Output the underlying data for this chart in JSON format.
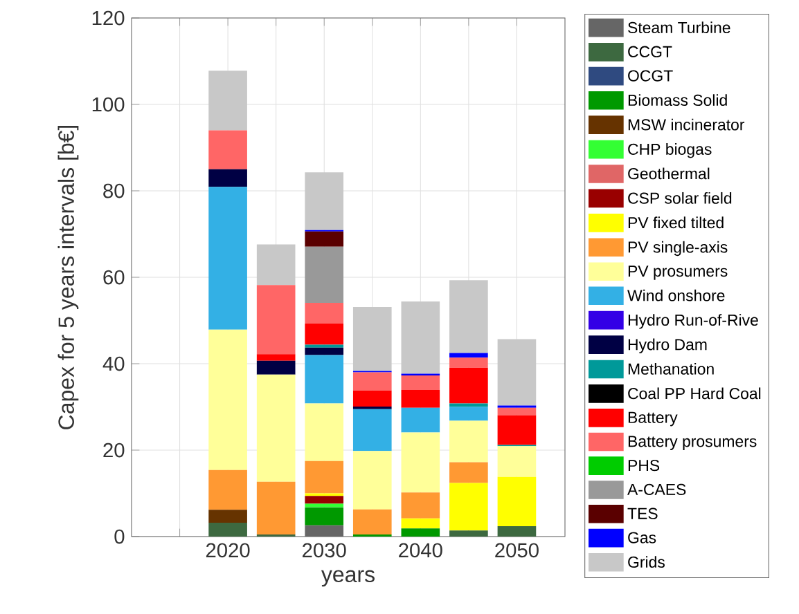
{
  "chart_data": {
    "type": "bar",
    "stacked": true,
    "xlabel": "years",
    "ylabel": "Capex for 5 years intervals [b€]",
    "x": [
      2020,
      2025,
      2030,
      2035,
      2040,
      2045,
      2050
    ],
    "xlim": [
      2010,
      2055
    ],
    "xticks": [
      {
        "value": 2015,
        "label": null
      },
      2020,
      {
        "value": 2025,
        "label": null
      },
      2030,
      {
        "value": 2035,
        "label": null
      },
      2040,
      {
        "value": 2045,
        "label": null
      },
      2050
    ],
    "ylim": [
      0,
      120
    ],
    "yticks": [
      0,
      20,
      40,
      60,
      80,
      100,
      120
    ],
    "grid": true,
    "legend": "right",
    "series": [
      {
        "name": "Steam Turbine",
        "color": "#666666",
        "values": [
          null,
          null,
          2.6,
          null,
          null,
          null,
          null
        ]
      },
      {
        "name": "CCGT",
        "color": "#3d6940",
        "values": [
          3.2,
          0.5,
          null,
          null,
          null,
          1.4,
          2.4
        ]
      },
      {
        "name": "OCGT",
        "color": "#2f4a80",
        "values": [
          null,
          null,
          null,
          null,
          null,
          null,
          null
        ]
      },
      {
        "name": "Biomass Solid",
        "color": "#009900",
        "values": [
          null,
          null,
          4.2,
          0.5,
          1.9,
          null,
          null
        ]
      },
      {
        "name": "MSW incinerator",
        "color": "#663300",
        "values": [
          3.0,
          null,
          null,
          null,
          null,
          null,
          null
        ]
      },
      {
        "name": "CHP biogas",
        "color": "#33ff33",
        "values": [
          null,
          null,
          0.8,
          null,
          null,
          null,
          null
        ]
      },
      {
        "name": "Geothermal",
        "color": "#e06666",
        "values": [
          null,
          null,
          null,
          null,
          null,
          null,
          null
        ]
      },
      {
        "name": "CSP solar field",
        "color": "#990000",
        "values": [
          null,
          null,
          1.8,
          null,
          null,
          null,
          null
        ]
      },
      {
        "name": "PV fixed tilted",
        "color": "#ffff00",
        "values": [
          null,
          null,
          0.6,
          null,
          2.3,
          11.0,
          11.4
        ]
      },
      {
        "name": "PV single-axis",
        "color": "#ff9933",
        "values": [
          9.2,
          12.2,
          7.5,
          5.8,
          6.0,
          4.8,
          null
        ]
      },
      {
        "name": "PV prosumers",
        "color": "#ffff99",
        "values": [
          32.5,
          24.8,
          13.3,
          13.5,
          13.9,
          9.6,
          7.1
        ]
      },
      {
        "name": "Wind onshore",
        "color": "#33b0e5",
        "values": [
          33.0,
          null,
          11.2,
          9.7,
          5.7,
          3.2,
          null
        ]
      },
      {
        "name": "Hydro Run-of-Rive",
        "color": "#3300e6",
        "values": [
          null,
          null,
          null,
          null,
          null,
          null,
          null
        ]
      },
      {
        "name": "Hydro Dam",
        "color": "#000044",
        "values": [
          4.1,
          3.2,
          1.7,
          0.6,
          null,
          null,
          null
        ]
      },
      {
        "name": "Methanation",
        "color": "#009999",
        "values": [
          null,
          null,
          0.7,
          null,
          null,
          0.8,
          0.3
        ]
      },
      {
        "name": "Coal PP Hard Coal",
        "color": "#000000",
        "values": [
          null,
          null,
          null,
          null,
          null,
          null,
          null
        ]
      },
      {
        "name": "Battery",
        "color": "#ff0000",
        "values": [
          null,
          1.5,
          4.9,
          3.7,
          4.1,
          8.3,
          6.9
        ]
      },
      {
        "name": "Battery prosumers",
        "color": "#ff6666",
        "values": [
          9.0,
          16.0,
          4.8,
          4.2,
          3.4,
          2.3,
          1.7
        ]
      },
      {
        "name": "PHS",
        "color": "#00cc00",
        "values": [
          null,
          null,
          null,
          null,
          null,
          null,
          null
        ]
      },
      {
        "name": "A-CAES",
        "color": "#999999",
        "values": [
          null,
          null,
          13.0,
          null,
          null,
          null,
          null
        ]
      },
      {
        "name": "TES",
        "color": "#5a0000",
        "values": [
          null,
          null,
          3.5,
          null,
          null,
          null,
          null
        ]
      },
      {
        "name": "Gas",
        "color": "#0000ff",
        "values": [
          null,
          null,
          0.3,
          0.3,
          0.4,
          1.1,
          0.5
        ]
      },
      {
        "name": "Grids",
        "color": "#c8c8c8",
        "values": [
          13.8,
          9.4,
          13.4,
          14.8,
          16.7,
          16.8,
          15.4
        ]
      }
    ]
  }
}
